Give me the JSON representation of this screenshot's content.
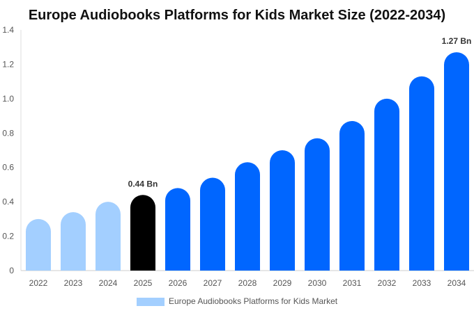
{
  "chart_data": {
    "type": "bar",
    "title": "Europe Audiobooks Platforms for Kids Market Size (2022-2034)",
    "xlabel": "",
    "ylabel": "",
    "categories": [
      "2022",
      "2023",
      "2024",
      "2025",
      "2026",
      "2027",
      "2028",
      "2029",
      "2030",
      "2031",
      "2032",
      "2033",
      "2034"
    ],
    "series": [
      {
        "name": "Europe Audiobooks Platforms for Kids Market",
        "values": [
          0.3,
          0.34,
          0.4,
          0.44,
          0.48,
          0.54,
          0.63,
          0.7,
          0.77,
          0.87,
          1.0,
          1.13,
          1.27
        ]
      }
    ],
    "ylim": [
      0,
      1.4
    ],
    "yticks": [
      "0",
      "0.2",
      "0.4",
      "0.6",
      "0.8",
      "1.0",
      "1.2",
      "1.4"
    ],
    "data_labels": [
      {
        "category": "2025",
        "text": "0.44 Bn"
      },
      {
        "category": "2034",
        "text": "1.27 Bn"
      }
    ],
    "colors": {
      "historic": "#a3cfff",
      "current": "#000000",
      "forecast": "#0066ff",
      "legend_swatch": "#a3cfff"
    },
    "color_groups": [
      "historic",
      "historic",
      "historic",
      "current",
      "forecast",
      "forecast",
      "forecast",
      "forecast",
      "forecast",
      "forecast",
      "forecast",
      "forecast",
      "forecast"
    ],
    "grid": false,
    "legend_position": "bottom"
  }
}
